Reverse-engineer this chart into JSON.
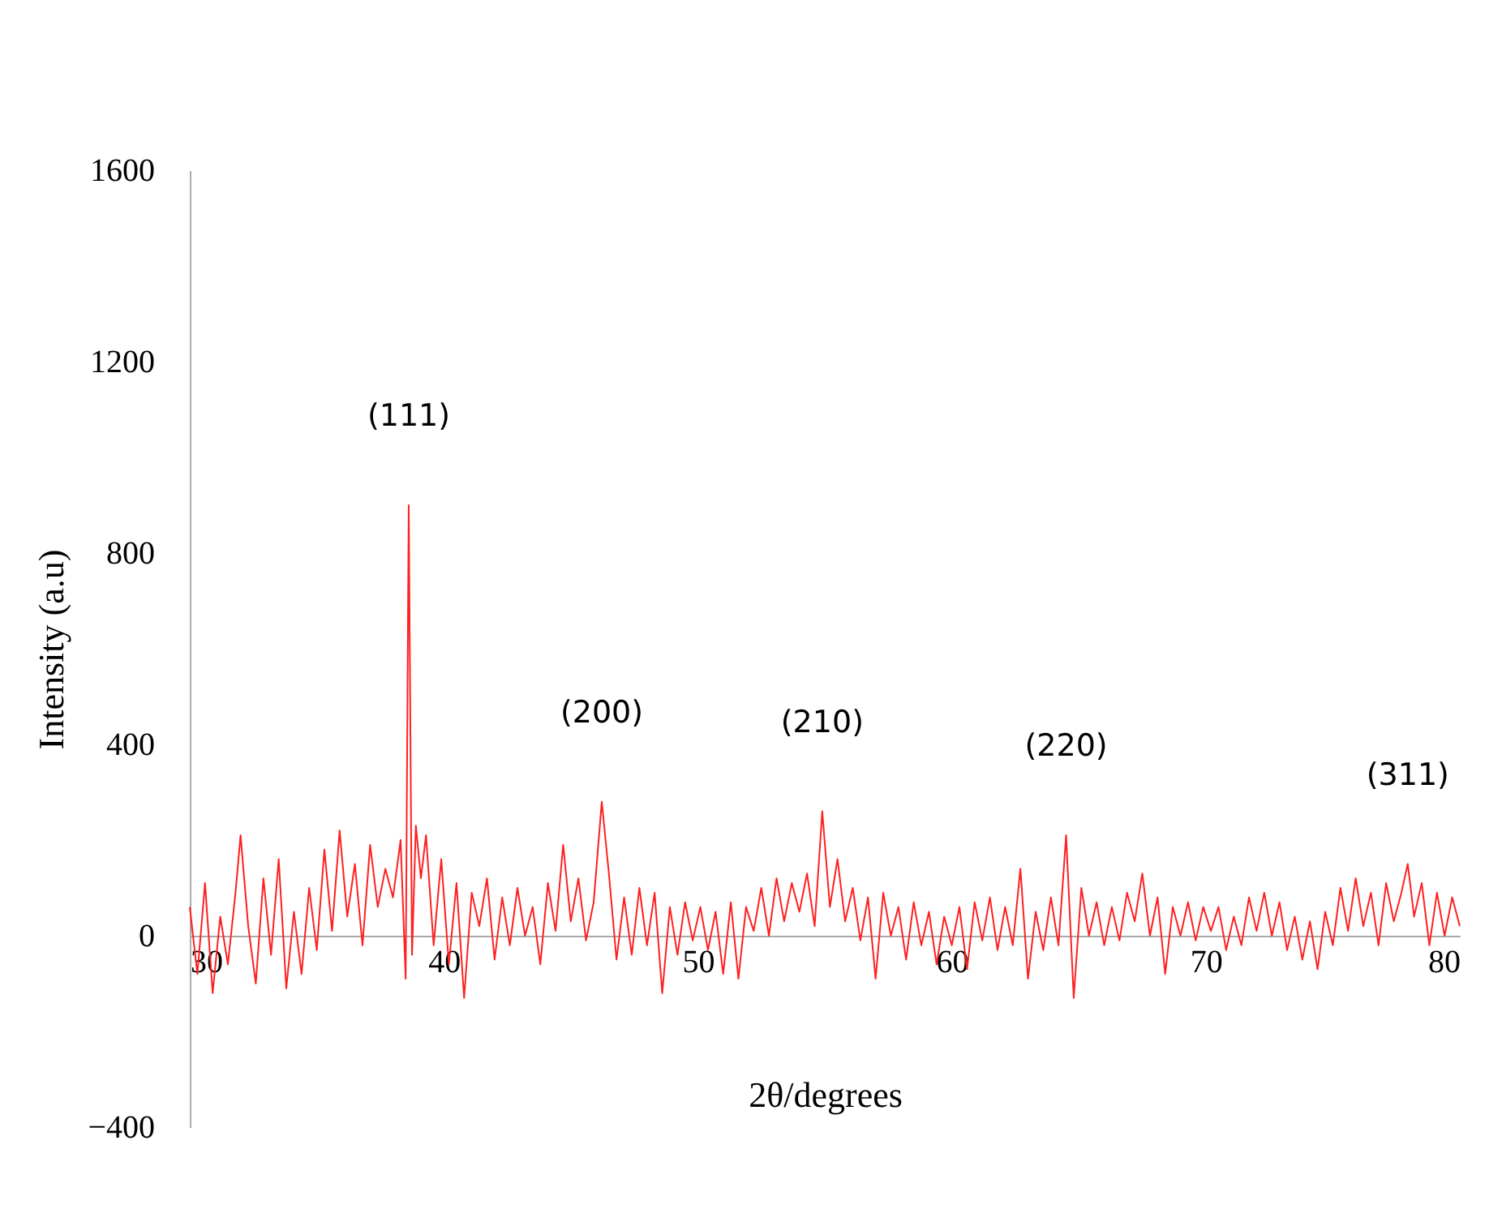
{
  "chart_data": {
    "type": "line",
    "xlabel": "2θ/degrees",
    "ylabel": "Intensity (a.u)",
    "x": [
      30.0,
      30.3,
      30.6,
      30.9,
      31.2,
      31.5,
      31.8,
      32.0,
      32.3,
      32.6,
      32.9,
      33.2,
      33.5,
      33.8,
      34.1,
      34.4,
      34.7,
      35.0,
      35.3,
      35.6,
      35.9,
      36.2,
      36.5,
      36.8,
      37.1,
      37.4,
      37.7,
      38.0,
      38.3,
      38.5,
      38.62,
      38.75,
      38.9,
      39.1,
      39.3,
      39.6,
      39.9,
      40.2,
      40.5,
      40.8,
      41.1,
      41.4,
      41.7,
      42.0,
      42.3,
      42.6,
      42.9,
      43.2,
      43.5,
      43.8,
      44.1,
      44.4,
      44.7,
      45.0,
      45.3,
      45.6,
      45.9,
      46.22,
      46.5,
      46.8,
      47.1,
      47.4,
      47.7,
      48.0,
      48.3,
      48.6,
      48.9,
      49.2,
      49.5,
      49.8,
      50.1,
      50.4,
      50.7,
      51.0,
      51.3,
      51.6,
      51.9,
      52.2,
      52.5,
      52.8,
      53.1,
      53.4,
      53.7,
      54.0,
      54.3,
      54.6,
      54.9,
      55.2,
      55.5,
      55.8,
      56.1,
      56.4,
      56.7,
      57.0,
      57.3,
      57.6,
      57.9,
      58.2,
      58.5,
      58.8,
      59.1,
      59.4,
      59.7,
      60.0,
      60.3,
      60.6,
      60.9,
      61.2,
      61.5,
      61.8,
      62.1,
      62.4,
      62.7,
      63.0,
      63.3,
      63.6,
      63.9,
      64.2,
      64.5,
      64.8,
      65.1,
      65.4,
      65.7,
      66.0,
      66.3,
      66.6,
      66.9,
      67.2,
      67.5,
      67.8,
      68.1,
      68.4,
      68.7,
      69.0,
      69.3,
      69.6,
      69.9,
      70.2,
      70.5,
      70.8,
      71.1,
      71.4,
      71.7,
      72.0,
      72.3,
      72.6,
      72.9,
      73.2,
      73.5,
      73.8,
      74.1,
      74.4,
      74.7,
      75.0,
      75.3,
      75.6,
      75.9,
      76.2,
      76.5,
      76.8,
      77.1,
      77.4,
      77.7,
      77.95,
      78.2,
      78.5,
      78.8,
      79.1,
      79.4,
      79.7,
      80.0
    ],
    "series": [
      {
        "color": "#ff2020",
        "values": [
          60,
          -80,
          110,
          -120,
          40,
          -60,
          90,
          210,
          20,
          -100,
          120,
          -40,
          160,
          -110,
          50,
          -80,
          100,
          -30,
          180,
          10,
          220,
          40,
          150,
          -20,
          190,
          60,
          140,
          80,
          200,
          -90,
          900,
          -40,
          230,
          120,
          210,
          -20,
          160,
          -60,
          110,
          -130,
          90,
          20,
          120,
          -50,
          80,
          -20,
          100,
          0,
          60,
          -60,
          110,
          10,
          190,
          30,
          120,
          -10,
          70,
          280,
          130,
          -50,
          80,
          -40,
          100,
          -20,
          90,
          -120,
          60,
          -40,
          70,
          -10,
          60,
          -30,
          50,
          -80,
          70,
          -90,
          60,
          10,
          100,
          0,
          120,
          30,
          110,
          50,
          130,
          20,
          260,
          60,
          160,
          30,
          100,
          -10,
          80,
          -90,
          90,
          0,
          60,
          -50,
          70,
          -20,
          50,
          -60,
          40,
          -20,
          60,
          -70,
          70,
          -10,
          80,
          -30,
          60,
          -20,
          140,
          -90,
          50,
          -30,
          80,
          -20,
          210,
          -130,
          100,
          0,
          70,
          -20,
          60,
          -10,
          90,
          30,
          130,
          0,
          80,
          -80,
          60,
          0,
          70,
          -10,
          60,
          10,
          60,
          -30,
          40,
          -20,
          80,
          10,
          90,
          0,
          70,
          -30,
          40,
          -50,
          30,
          -70,
          50,
          -20,
          100,
          10,
          120,
          20,
          90,
          -20,
          110,
          30,
          90,
          150,
          40,
          110,
          -20,
          90,
          0,
          80,
          20
        ]
      }
    ],
    "xlim": [
      30,
      80
    ],
    "xticks": [
      30,
      40,
      50,
      60,
      70,
      80
    ],
    "ylim": [
      -400,
      1600
    ],
    "yticks": [
      -400,
      0,
      400,
      800,
      1200,
      1600
    ],
    "grid": false,
    "marker": "none",
    "line_style": "solid",
    "annotations": [
      {
        "text": "(111)",
        "x": 38.62,
        "y": 900
      },
      {
        "text": "(200)",
        "x": 46.22,
        "y": 280
      },
      {
        "text": "(210)",
        "x": 54.9,
        "y": 260
      },
      {
        "text": "(220)",
        "x": 64.5,
        "y": 210
      },
      {
        "text": "(311)",
        "x": 77.95,
        "y": 150
      }
    ]
  }
}
